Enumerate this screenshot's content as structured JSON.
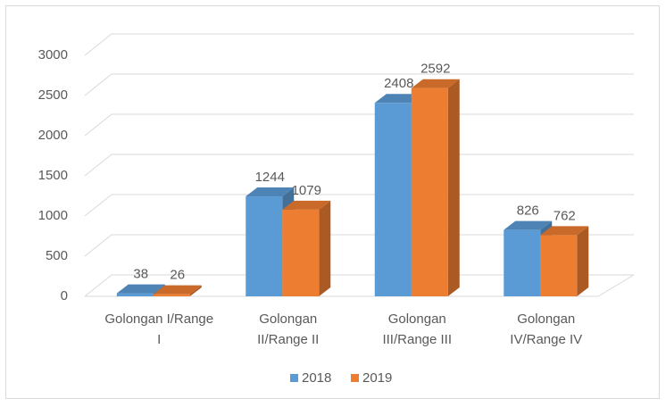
{
  "chart_data": {
    "type": "bar3d",
    "categories": [
      [
        "Golongan I/Range",
        "I"
      ],
      [
        "Golongan",
        "II/Range II"
      ],
      [
        "Golongan",
        "III/Range III"
      ],
      [
        "Golongan",
        "IV/Range IV"
      ]
    ],
    "series": [
      {
        "name": "2018",
        "color": "#5b9bd5",
        "values": [
          38,
          1244,
          2408,
          826
        ]
      },
      {
        "name": "2019",
        "color": "#ed7d31",
        "values": [
          26,
          1079,
          2592,
          762
        ]
      }
    ],
    "ylim": [
      0,
      3000
    ],
    "yticks": [
      0,
      500,
      1000,
      1500,
      2000,
      2500,
      3000
    ],
    "grid": true,
    "legend": "bottom"
  }
}
